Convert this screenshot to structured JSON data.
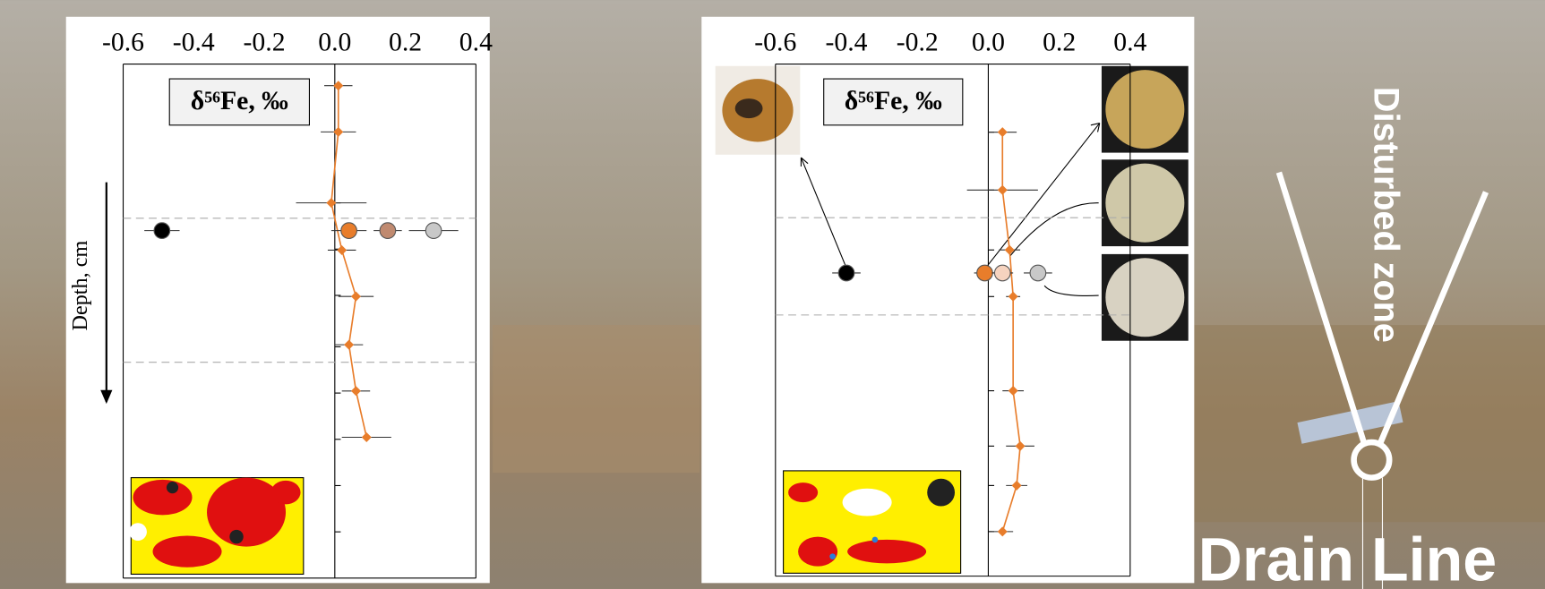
{
  "chart_data": [
    {
      "type": "scatter",
      "annotation": "δ⁵⁶Fe, ‰",
      "ylabel": "Depth, cm",
      "xlim": [
        -0.6,
        0.4
      ],
      "xticks": [
        -0.6,
        -0.4,
        -0.2,
        {
          "value": 0,
          "label": "0.0"
        },
        0.2,
        0.4
      ],
      "ylim": [
        0,
        100
      ],
      "yticks": [
        4,
        13,
        27,
        36,
        45,
        55,
        64,
        73,
        82,
        91
      ],
      "hlines": [
        30,
        58
      ],
      "series": [
        {
          "color": "#e87d2b",
          "x": [
            0.01,
            0.01,
            -0.01,
            0.02,
            0.06,
            0.04,
            0.06,
            0.09
          ],
          "xerr": [
            0.04,
            0.05,
            0.1,
            0.04,
            0.05,
            0.04,
            0.04,
            0.07
          ],
          "y": [
            4.2,
            13.2,
            27,
            36.2,
            45.2,
            54.6,
            63.6,
            72.6
          ]
        }
      ],
      "points": {
        "x": [
          -0.49,
          0.04,
          0.15,
          0.28
        ],
        "xerr": [
          0.05,
          0.05,
          0.04,
          0.07
        ],
        "y": [
          32.4,
          32.4,
          32.4,
          32.4
        ],
        "colors": [
          "#000000",
          "#e87d2b",
          "#c08a70",
          "#c8c8c8"
        ]
      }
    },
    {
      "type": "scatter",
      "annotation": "δ⁵⁶Fe, ‰",
      "xlim": [
        -0.6,
        0.4
      ],
      "xticks": [
        -0.6,
        -0.4,
        -0.2,
        {
          "value": 0,
          "label": "0.0"
        },
        0.2,
        0.4
      ],
      "ylim": [
        0,
        100
      ],
      "yticks": [
        13.3,
        24.6,
        36.3,
        45.4,
        63.8,
        74.6,
        82.3,
        91.3
      ],
      "hlines": [
        30,
        49
      ],
      "series": [
        {
          "color": "#e87d2b",
          "x": [
            0.04,
            0.04,
            0.06,
            0.07,
            0.07,
            0.09,
            0.08,
            0.04
          ],
          "xerr": [
            0.04,
            0.1,
            0.03,
            0.02,
            0.03,
            0.04,
            0.03,
            0.03
          ],
          "y": [
            13.3,
            24.6,
            36.3,
            45.4,
            63.8,
            74.6,
            82.3,
            91.3
          ]
        }
      ],
      "points": {
        "x": [
          -0.4,
          -0.01,
          0.04,
          0.14
        ],
        "xerr": [
          0.04,
          0.03,
          0.03,
          0.04
        ],
        "y": [
          40.8,
          40.8,
          40.8,
          40.8
        ],
        "colors": [
          "#000000",
          "#e87d2b",
          "#f6d3bf",
          "#c8c8c8"
        ]
      }
    }
  ],
  "overlay": {
    "zone": "Disturbed zone",
    "line": "Drain Line"
  }
}
